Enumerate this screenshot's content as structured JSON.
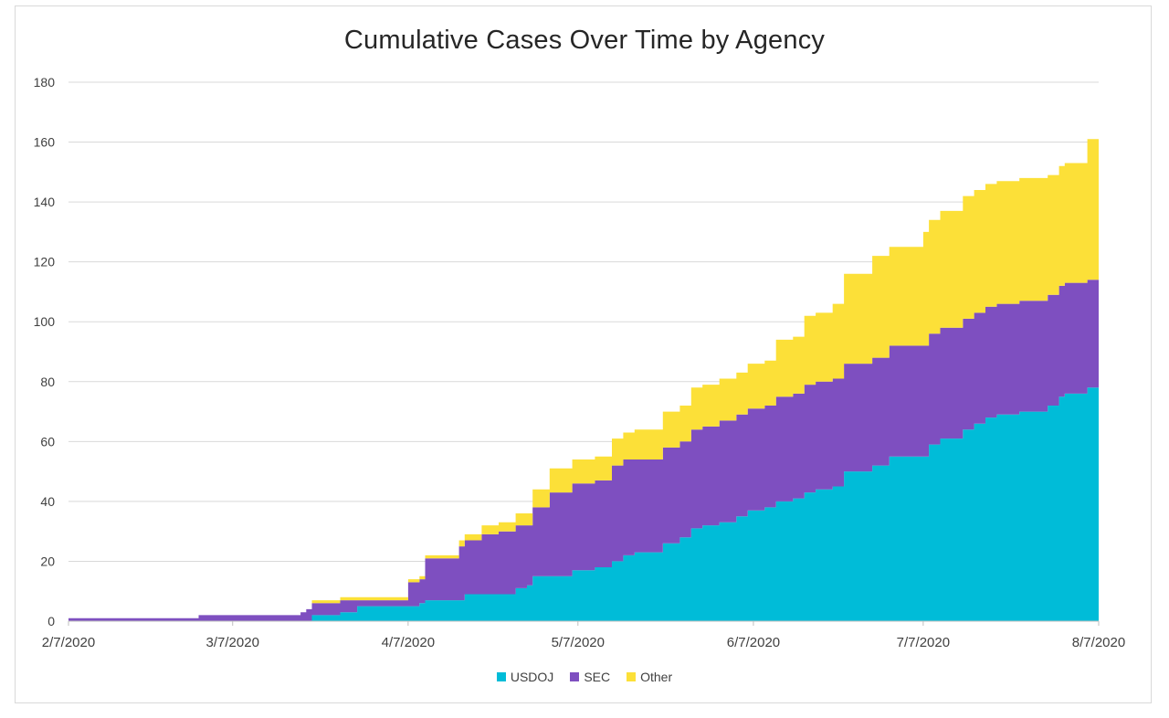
{
  "chart_data": {
    "type": "area",
    "stacked": true,
    "title": "Cumulative Cases Over Time by Agency",
    "xlabel": "",
    "ylabel": "",
    "ylim": [
      0,
      180
    ],
    "yticks": [
      0,
      20,
      40,
      60,
      80,
      100,
      120,
      140,
      160,
      180
    ],
    "xlim": [
      "2/7/2020",
      "8/7/2020"
    ],
    "xtick_labels": [
      "2/7/2020",
      "3/7/2020",
      "4/7/2020",
      "5/7/2020",
      "6/7/2020",
      "7/7/2020",
      "8/7/2020"
    ],
    "grid": true,
    "legend_position": "bottom",
    "series": [
      {
        "name": "USDOJ",
        "color": "#00bcd8",
        "points": [
          [
            "2/7/2020",
            0
          ],
          [
            "3/20/2020",
            0
          ],
          [
            "3/21/2020",
            2
          ],
          [
            "3/26/2020",
            3
          ],
          [
            "3/29/2020",
            5
          ],
          [
            "4/7/2020",
            5
          ],
          [
            "4/9/2020",
            6
          ],
          [
            "4/10/2020",
            7
          ],
          [
            "4/16/2020",
            7
          ],
          [
            "4/17/2020",
            9
          ],
          [
            "4/23/2020",
            9
          ],
          [
            "4/26/2020",
            11
          ],
          [
            "4/28/2020",
            12
          ],
          [
            "4/29/2020",
            15
          ],
          [
            "5/5/2020",
            15
          ],
          [
            "5/6/2020",
            17
          ],
          [
            "5/10/2020",
            18
          ],
          [
            "5/13/2020",
            20
          ],
          [
            "5/15/2020",
            22
          ],
          [
            "5/17/2020",
            23
          ],
          [
            "5/22/2020",
            26
          ],
          [
            "5/25/2020",
            28
          ],
          [
            "5/27/2020",
            31
          ],
          [
            "5/29/2020",
            32
          ],
          [
            "6/1/2020",
            33
          ],
          [
            "6/4/2020",
            35
          ],
          [
            "6/6/2020",
            37
          ],
          [
            "6/9/2020",
            38
          ],
          [
            "6/11/2020",
            40
          ],
          [
            "6/14/2020",
            41
          ],
          [
            "6/16/2020",
            43
          ],
          [
            "6/18/2020",
            44
          ],
          [
            "6/21/2020",
            45
          ],
          [
            "6/23/2020",
            50
          ],
          [
            "6/28/2020",
            52
          ],
          [
            "7/1/2020",
            55
          ],
          [
            "7/7/2020",
            55
          ],
          [
            "7/8/2020",
            59
          ],
          [
            "7/10/2020",
            61
          ],
          [
            "7/13/2020",
            61
          ],
          [
            "7/14/2020",
            64
          ],
          [
            "7/16/2020",
            66
          ],
          [
            "7/18/2020",
            68
          ],
          [
            "7/20/2020",
            69
          ],
          [
            "7/24/2020",
            70
          ],
          [
            "7/29/2020",
            72
          ],
          [
            "7/31/2020",
            75
          ],
          [
            "8/1/2020",
            76
          ],
          [
            "8/5/2020",
            78
          ],
          [
            "8/7/2020",
            82
          ]
        ]
      },
      {
        "name": "SEC",
        "color": "#7e4fc0",
        "points": [
          [
            "2/7/2020",
            1
          ],
          [
            "3/1/2020",
            2
          ],
          [
            "3/19/2020",
            3
          ],
          [
            "3/20/2020",
            4
          ],
          [
            "3/21/2020",
            4
          ],
          [
            "3/29/2020",
            2
          ],
          [
            "4/7/2020",
            8
          ],
          [
            "4/10/2020",
            14
          ],
          [
            "4/16/2020",
            18
          ],
          [
            "4/20/2020",
            20
          ],
          [
            "4/23/2020",
            21
          ],
          [
            "4/26/2020",
            21
          ],
          [
            "4/28/2020",
            20
          ],
          [
            "4/29/2020",
            23
          ],
          [
            "5/2/2020",
            28
          ],
          [
            "5/6/2020",
            29
          ],
          [
            "5/10/2020",
            29
          ],
          [
            "5/13/2020",
            32
          ],
          [
            "5/17/2020",
            31
          ],
          [
            "5/22/2020",
            32
          ],
          [
            "5/27/2020",
            33
          ],
          [
            "6/1/2020",
            34
          ],
          [
            "6/6/2020",
            34
          ],
          [
            "6/11/2020",
            35
          ],
          [
            "6/16/2020",
            36
          ],
          [
            "6/21/2020",
            36
          ],
          [
            "6/23/2020",
            36
          ],
          [
            "6/28/2020",
            36
          ],
          [
            "7/1/2020",
            37
          ],
          [
            "7/7/2020",
            37
          ],
          [
            "7/10/2020",
            37
          ],
          [
            "7/14/2020",
            37
          ],
          [
            "7/18/2020",
            37
          ],
          [
            "7/24/2020",
            37
          ],
          [
            "7/29/2020",
            37
          ],
          [
            "8/1/2020",
            37
          ],
          [
            "8/5/2020",
            36
          ],
          [
            "8/7/2020",
            37
          ]
        ]
      },
      {
        "name": "Other",
        "color": "#fce038",
        "points": [
          [
            "2/7/2020",
            0
          ],
          [
            "3/20/2020",
            0
          ],
          [
            "3/21/2020",
            1
          ],
          [
            "3/29/2020",
            1
          ],
          [
            "4/7/2020",
            1
          ],
          [
            "4/10/2020",
            1
          ],
          [
            "4/16/2020",
            2
          ],
          [
            "4/20/2020",
            3
          ],
          [
            "4/23/2020",
            3
          ],
          [
            "4/26/2020",
            4
          ],
          [
            "4/29/2020",
            6
          ],
          [
            "5/2/2020",
            8
          ],
          [
            "5/6/2020",
            8
          ],
          [
            "5/10/2020",
            8
          ],
          [
            "5/13/2020",
            9
          ],
          [
            "5/17/2020",
            10
          ],
          [
            "5/22/2020",
            12
          ],
          [
            "5/27/2020",
            14
          ],
          [
            "6/1/2020",
            14
          ],
          [
            "6/6/2020",
            15
          ],
          [
            "6/11/2020",
            19
          ],
          [
            "6/16/2020",
            23
          ],
          [
            "6/21/2020",
            25
          ],
          [
            "6/23/2020",
            30
          ],
          [
            "6/28/2020",
            34
          ],
          [
            "7/1/2020",
            33
          ],
          [
            "7/7/2020",
            38
          ],
          [
            "7/10/2020",
            39
          ],
          [
            "7/14/2020",
            41
          ],
          [
            "7/18/2020",
            41
          ],
          [
            "7/24/2020",
            41
          ],
          [
            "7/29/2020",
            40
          ],
          [
            "8/1/2020",
            40
          ],
          [
            "8/5/2020",
            47
          ],
          [
            "8/7/2020",
            49
          ]
        ]
      }
    ]
  }
}
